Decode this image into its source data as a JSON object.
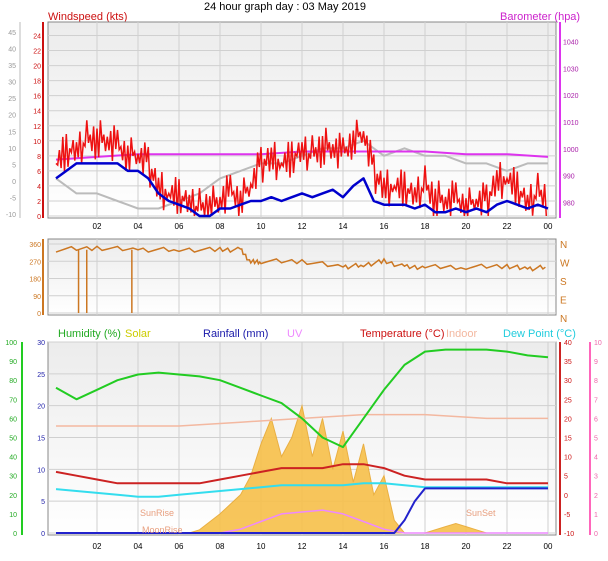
{
  "page": {
    "title": "24 hour graph day : 03 May 2019"
  },
  "colors": {
    "windspeed": "#ee1111",
    "gust": "#ff3333",
    "avgwind": "#0000cc",
    "barometer": "#dd33ee",
    "bar_gray": "#bbbbbb",
    "winddir": "#cc7722",
    "humidity": "#22cc22",
    "solar": "#f7c04a",
    "rainfall": "#2222cc",
    "uv": "#ee88ff",
    "temperature": "#cc2222",
    "indoor": "#f3b8a0",
    "dewpoint": "#33ddee",
    "hum_axis": "#22cc22",
    "uv_axis": "#ff66bb"
  },
  "chart_data": [
    {
      "type": "line",
      "xlabel": "",
      "x_ticks": [
        "02",
        "04",
        "06",
        "08",
        "10",
        "12",
        "14",
        "16",
        "18",
        "20",
        "22",
        "00"
      ],
      "left_title": "Windspeed (kts)",
      "right_title": "Barometer (hpa)",
      "left_axis_outer": {
        "ticks": [
          -10,
          -5,
          0,
          5,
          10,
          15,
          20,
          25,
          30,
          35,
          40,
          45
        ]
      },
      "left_axis_inner": {
        "ticks": [
          0,
          2,
          4,
          6,
          8,
          10,
          12,
          14,
          16,
          18,
          20,
          22,
          24
        ],
        "ylim": [
          0,
          25
        ]
      },
      "right_axis": {
        "ticks": [
          980,
          990,
          1000,
          1010,
          1020,
          1030,
          1040
        ],
        "ylim": [
          975,
          1045
        ]
      },
      "series": [
        {
          "name": "Windspeed",
          "key": "wind",
          "x": [
            0,
            0.5,
            1,
            1.5,
            2,
            2.5,
            3,
            3.5,
            4,
            4.5,
            5,
            5.5,
            6,
            6.5,
            7,
            7.5,
            8,
            8.5,
            9,
            9.5,
            10,
            10.5,
            11,
            11.5,
            12,
            12.5,
            13,
            13.5,
            14,
            14.5,
            15,
            15.5,
            16,
            16.5,
            17,
            17.5,
            18,
            18.5,
            19,
            19.5,
            20,
            20.5,
            21,
            21.5,
            22,
            22.5,
            23,
            23.5,
            24
          ],
          "values": [
            7,
            9,
            9,
            10,
            10,
            10,
            9,
            8,
            8,
            7,
            4,
            3,
            3,
            2,
            1,
            1,
            2,
            3,
            2,
            4,
            7,
            8,
            7,
            8,
            9,
            8,
            9,
            9,
            8,
            10,
            11,
            6,
            4,
            4,
            4,
            3,
            4,
            2,
            2,
            2,
            1,
            2,
            2,
            5,
            5,
            4,
            2,
            3,
            2
          ]
        },
        {
          "name": "Avg wind",
          "key": "avg",
          "x": [
            0,
            0.5,
            1,
            1.5,
            2,
            2.5,
            3,
            3.5,
            4,
            4.5,
            5,
            5.5,
            6,
            6.5,
            7,
            7.5,
            8,
            8.5,
            9,
            9.5,
            10,
            10.5,
            11,
            11.5,
            12,
            12.5,
            13,
            13.5,
            14,
            14.5,
            15,
            15.5,
            16,
            16.5,
            17,
            17.5,
            18,
            18.5,
            19,
            19.5,
            20,
            20.5,
            21,
            21.5,
            22,
            22.5,
            23,
            23.5,
            24
          ],
          "values": [
            5,
            6,
            7,
            7,
            7,
            7,
            7,
            6,
            6,
            5,
            3,
            2,
            1.5,
            1,
            0,
            0,
            1,
            1,
            1.5,
            2,
            2,
            2.5,
            2,
            2.5,
            3,
            2.5,
            3,
            3.5,
            2.5,
            4,
            5,
            2,
            1.5,
            1.5,
            1.5,
            1,
            1.5,
            0.5,
            0.5,
            1,
            0.5,
            1,
            0.5,
            1.5,
            2,
            1.5,
            1,
            1.5,
            1
          ]
        },
        {
          "name": "Barometer",
          "key": "baro",
          "x": [
            0,
            2,
            4,
            6,
            8,
            10,
            12,
            14,
            16,
            18,
            20,
            22,
            24
          ],
          "values": [
            996,
            997,
            998,
            998,
            998,
            998,
            999,
            999,
            999,
            999,
            998,
            998,
            997
          ]
        },
        {
          "name": "Gray",
          "key": "gray",
          "x": [
            0,
            1,
            2,
            3,
            4,
            5,
            6,
            7,
            8,
            9,
            10,
            11,
            12,
            13,
            14,
            15,
            16,
            17,
            18,
            19,
            20,
            21,
            22,
            23,
            24
          ],
          "values": [
            5,
            3,
            3,
            2,
            1,
            1,
            2,
            3,
            5,
            6,
            7,
            7,
            8,
            9,
            9,
            10,
            8,
            9,
            8,
            8,
            7,
            7,
            6,
            7,
            7
          ]
        }
      ]
    },
    {
      "type": "line",
      "left_axis": {
        "ticks": [
          0,
          90,
          180,
          270,
          360
        ],
        "ylim": [
          0,
          360
        ]
      },
      "right_labels": [
        "N",
        "W",
        "S",
        "E",
        "N"
      ],
      "series": [
        {
          "name": "Wind direction",
          "key": "dir",
          "x": [
            0,
            2,
            4,
            6,
            8,
            9,
            9.5,
            10,
            12,
            14,
            15,
            16,
            17,
            18,
            20,
            22,
            23,
            24
          ],
          "values": [
            330,
            340,
            330,
            330,
            330,
            330,
            265,
            270,
            270,
            240,
            250,
            270,
            240,
            240,
            240,
            245,
            230,
            240
          ]
        }
      ],
      "spikes": [
        {
          "x": 1.1,
          "value": 0
        },
        {
          "x": 1.5,
          "value": 0
        },
        {
          "x": 3.7,
          "value": 0
        }
      ]
    },
    {
      "type": "area",
      "legend": [
        "Humidity (%)",
        "Solar",
        "Rainfall (mm)",
        "UV",
        "Temperature (°C)",
        "Indoor",
        "Dew Point (°C)"
      ],
      "x_ticks": [
        "02",
        "04",
        "06",
        "08",
        "10",
        "12",
        "14",
        "16",
        "18",
        "20",
        "22",
        "00"
      ],
      "axis_humidity": {
        "ticks": [
          0,
          10,
          20,
          30,
          40,
          50,
          60,
          70,
          80,
          90,
          100
        ]
      },
      "axis_rain": {
        "ticks": [
          0,
          5,
          10,
          15,
          20,
          25,
          30
        ],
        "ylim": [
          0,
          30
        ]
      },
      "axis_temp": {
        "ticks": [
          -10,
          -5,
          0,
          5,
          10,
          15,
          20,
          25,
          30,
          35,
          40
        ],
        "ylim": [
          -10,
          40
        ]
      },
      "axis_uv": {
        "ticks": [
          0,
          1,
          2,
          3,
          4,
          5,
          6,
          7,
          8,
          9,
          10
        ]
      },
      "annotations": [
        "SunRise",
        "SunSet",
        "MoonRise"
      ],
      "series": [
        {
          "name": "Humidity",
          "key": "hum",
          "x": [
            0,
            1,
            2,
            3,
            4,
            5,
            6,
            7,
            8,
            9,
            10,
            11,
            12,
            13,
            14,
            15,
            16,
            17,
            18,
            19,
            20,
            21,
            22,
            23,
            24
          ],
          "values": [
            76,
            70,
            75,
            80,
            83,
            84,
            83,
            82,
            80,
            76,
            72,
            68,
            60,
            50,
            45,
            60,
            75,
            88,
            95,
            96,
            96,
            96,
            95,
            93,
            92
          ]
        },
        {
          "name": "Temperature",
          "key": "temp",
          "x": [
            0,
            1,
            2,
            3,
            4,
            5,
            6,
            7,
            8,
            9,
            10,
            11,
            12,
            13,
            14,
            15,
            16,
            17,
            18,
            19,
            20,
            21,
            22,
            23,
            24
          ],
          "values": [
            6,
            5,
            4,
            3,
            3,
            3,
            3,
            3,
            4,
            5,
            6,
            7,
            7,
            7,
            8,
            8,
            7,
            5,
            4,
            4,
            4,
            4,
            3,
            3,
            3
          ]
        },
        {
          "name": "Dew Point",
          "key": "dew",
          "x": [
            0,
            1,
            2,
            3,
            4,
            5,
            6,
            7,
            8,
            9,
            10,
            11,
            12,
            13,
            14,
            15,
            16,
            17,
            18,
            19,
            20,
            21,
            22,
            23,
            24
          ],
          "values": [
            1.5,
            1,
            0.5,
            0,
            -0.5,
            -0.5,
            0,
            0.5,
            1,
            1.5,
            2,
            2.5,
            2.5,
            2.5,
            2.5,
            3,
            3,
            2.5,
            2,
            2,
            2,
            2,
            2,
            2,
            2
          ]
        },
        {
          "name": "Indoor",
          "key": "indoor",
          "x": [
            0,
            3,
            6,
            9,
            12,
            15,
            18,
            21,
            24
          ],
          "values": [
            18,
            18,
            18,
            19,
            20,
            21,
            21,
            20,
            20
          ]
        },
        {
          "name": "Rainfall",
          "key": "rain",
          "x": [
            0,
            8,
            16,
            16.5,
            17,
            17.5,
            18,
            24
          ],
          "values": [
            0,
            0,
            0,
            0,
            2,
            5,
            7,
            7
          ]
        },
        {
          "name": "UV",
          "key": "uv",
          "x": [
            0,
            8,
            9,
            10,
            11,
            12,
            13,
            14,
            15,
            16,
            17,
            24
          ],
          "values": [
            0,
            0,
            0.2,
            0.6,
            1.0,
            1.1,
            1.2,
            1.0,
            0.6,
            0.2,
            0,
            0
          ]
        },
        {
          "name": "Solar",
          "key": "solar",
          "x": [
            0,
            5.5,
            6.5,
            7,
            8,
            9,
            9.5,
            10,
            10.5,
            11,
            11.5,
            12,
            12.5,
            13,
            13.5,
            14,
            14.5,
            15,
            15.5,
            16,
            16.5,
            17,
            18,
            19,
            19.5,
            20,
            20.5,
            21,
            24
          ],
          "values": [
            0,
            0,
            0,
            0.5,
            3,
            6,
            9,
            14,
            18,
            12,
            15,
            20,
            12,
            18,
            10,
            16,
            8,
            14,
            6,
            9,
            2,
            0,
            0,
            1,
            1.5,
            1,
            0.5,
            0,
            0
          ]
        }
      ]
    }
  ]
}
